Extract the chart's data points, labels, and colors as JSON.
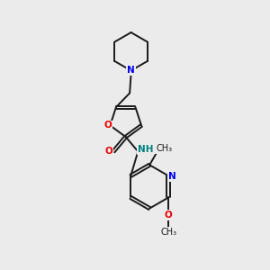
{
  "bg_color": "#ebebeb",
  "bond_color": "#1a1a1a",
  "N_color": "#0000ee",
  "O_color": "#ee0000",
  "NH_color": "#008080",
  "figsize": [
    3.0,
    3.0
  ],
  "dpi": 100,
  "xlim": [
    0,
    10
  ],
  "ylim": [
    0,
    10
  ]
}
